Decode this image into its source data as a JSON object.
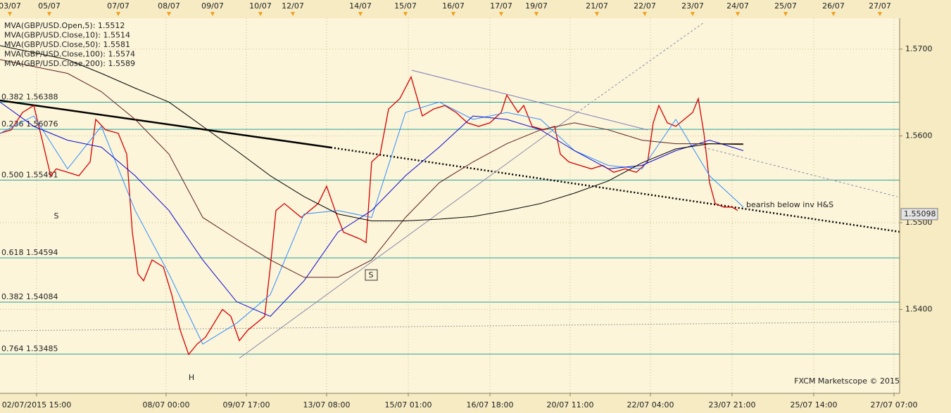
{
  "chart_data": {
    "type": "line",
    "legend": [
      "MVA(GBP/USD.Open,5): 1.5512",
      "MVA(GBP/USD.Close,10): 1.5514",
      "MVA(GBP/USD.Close,50): 1.5581",
      "MVA(GBP/USD.Close,100): 1.5574",
      "MVA(GBP/USD.Close,200): 1.5589"
    ],
    "x": [
      0,
      12,
      24,
      36,
      48,
      60,
      72,
      84,
      96,
      108,
      120,
      132,
      144,
      156,
      168,
      180,
      192,
      204,
      216,
      228,
      240,
      252,
      264
    ],
    "series": [
      {
        "name": "MVA(GBP/USD.Open,5): 1.5512",
        "color": "#d40000",
        "x": [
          0,
          4,
          8,
          12,
          15,
          18,
          20,
          24,
          28,
          32,
          34,
          37.5,
          42,
          45,
          47,
          49,
          51,
          54,
          58,
          61,
          64,
          67,
          70,
          73,
          76,
          79,
          82,
          85,
          88,
          91,
          94,
          96,
          98,
          101,
          104,
          107,
          110,
          113,
          116,
          119,
          122,
          125,
          128,
          130,
          132,
          135,
          138,
          142,
          146,
          150,
          154,
          158,
          162,
          166,
          170,
          174,
          178,
          180,
          184,
          186,
          189,
          193,
          197,
          199,
          202,
          206,
          210,
          214,
          218,
          222,
          226,
          230,
          232,
          234,
          237,
          240,
          243,
          246,
          248,
          250,
          252,
          254,
          257,
          260,
          262
        ],
        "values": [
          1.5603,
          1.5607,
          1.5627,
          1.5635,
          1.5595,
          1.5554,
          1.5562,
          1.5558,
          1.5554,
          1.557,
          1.5619,
          1.5607,
          1.5603,
          1.5579,
          1.5489,
          1.5441,
          1.5433,
          1.5457,
          1.5449,
          1.5417,
          1.5376,
          1.5348,
          1.536,
          1.5368,
          1.5384,
          1.54,
          1.5392,
          1.5364,
          1.5376,
          1.5384,
          1.5392,
          1.5449,
          1.5514,
          1.5522,
          1.5514,
          1.5506,
          1.5514,
          1.5522,
          1.5542,
          1.5514,
          1.5489,
          1.5485,
          1.5481,
          1.5477,
          1.557,
          1.5579,
          1.5631,
          1.5643,
          1.5668,
          1.5623,
          1.5631,
          1.5635,
          1.5627,
          1.5615,
          1.5611,
          1.5615,
          1.5627,
          1.5647,
          1.5627,
          1.5635,
          1.5611,
          1.5607,
          1.5611,
          1.5579,
          1.557,
          1.5566,
          1.5562,
          1.5566,
          1.5558,
          1.5562,
          1.5558,
          1.557,
          1.5615,
          1.5635,
          1.5615,
          1.5611,
          1.5619,
          1.5627,
          1.5643,
          1.5603,
          1.5546,
          1.5522,
          1.5518,
          1.5518,
          1.5514
        ]
      },
      {
        "name": "MVA(GBP/USD.Close,10): 1.5514",
        "color": "#2f8fff",
        "values": [
          1.5603,
          1.5623,
          1.5562,
          1.5611,
          1.5514,
          1.5441,
          1.536,
          1.5384,
          1.5417,
          1.551,
          1.5514,
          1.5506,
          1.5627,
          1.5639,
          1.5619,
          1.5627,
          1.5619,
          1.5583,
          1.5566,
          1.5562,
          1.5619,
          1.5554,
          1.5518
        ]
      },
      {
        "name": "MVA(GBP/USD.Close,50): 1.5581",
        "color": "#0a0ad0",
        "values": [
          1.5639,
          1.5611,
          1.5595,
          1.5587,
          1.5554,
          1.5514,
          1.5457,
          1.5409,
          1.5392,
          1.5433,
          1.5489,
          1.5514,
          1.5554,
          1.5587,
          1.5623,
          1.5619,
          1.5607,
          1.5583,
          1.5562,
          1.5566,
          1.5583,
          1.5595,
          1.5583
        ]
      },
      {
        "name": "MVA(GBP/USD.Close,100): 1.5574",
        "color": "#5a2020",
        "values": [
          1.5688,
          1.568,
          1.5672,
          1.5651,
          1.5619,
          1.5579,
          1.5506,
          1.5481,
          1.5457,
          1.5437,
          1.5437,
          1.5457,
          1.5506,
          1.5546,
          1.557,
          1.5591,
          1.5607,
          1.5615,
          1.5607,
          1.5595,
          1.5591,
          1.5591,
          1.5591
        ]
      },
      {
        "name": "MVA(GBP/USD.Close,200): 1.5589",
        "color": "#000000",
        "values": [
          1.5704,
          1.5696,
          1.5688,
          1.5672,
          1.5655,
          1.5639,
          1.5611,
          1.5583,
          1.5554,
          1.553,
          1.551,
          1.5502,
          1.5502,
          1.5504,
          1.5507,
          1.5514,
          1.5522,
          1.5534,
          1.5548,
          1.5569,
          1.5585,
          1.5591,
          1.559
        ]
      }
    ],
    "fib_levels": [
      {
        "value": 1.56388,
        "label": "0.382 1.56388"
      },
      {
        "value": 1.56076,
        "label": "0.236 1.56076"
      },
      {
        "value": 1.55491,
        "label": "0.500 1.55491"
      },
      {
        "value": 1.54594,
        "label": "0.618 1.54594"
      },
      {
        "value": 1.54084,
        "label": "0.382 1.54084"
      },
      {
        "value": 1.53485,
        "label": "0.764 1.53485"
      }
    ],
    "last_price": {
      "value": 1.55098,
      "label": "1.55098"
    },
    "xlim": [
      0,
      319.5
    ],
    "ylim": [
      1.5303,
      1.5736
    ],
    "yticks": [
      {
        "value": 1.57,
        "label": "1.5700"
      },
      {
        "value": 1.56,
        "label": "1.5600"
      },
      {
        "value": 1.55,
        "label": "1.5500"
      },
      {
        "value": 1.54,
        "label": "1.5400"
      }
    ],
    "xticks": [
      {
        "value": 13,
        "label": "02/07/2015 15:00"
      },
      {
        "value": 59,
        "label": "08/07 00:00"
      },
      {
        "value": 87.5,
        "label": "09/07 17:00"
      },
      {
        "value": 116,
        "label": "13/07 08:00"
      },
      {
        "value": 145,
        "label": "15/07 01:00"
      },
      {
        "value": 174,
        "label": "16/07 18:00"
      },
      {
        "value": 202.5,
        "label": "20/07 11:00"
      },
      {
        "value": 231,
        "label": "22/07 04:00"
      },
      {
        "value": 260,
        "label": "23/07 21:00"
      },
      {
        "value": 289,
        "label": "25/07 14:00"
      },
      {
        "value": 317.5,
        "label": "27/07 07:00"
      }
    ],
    "xticks_top": [
      {
        "value": 3.5,
        "label": "03/07"
      },
      {
        "value": 17.5,
        "label": "05/07"
      },
      {
        "value": 42,
        "label": "07/07"
      },
      {
        "value": 60,
        "label": "08/07"
      },
      {
        "value": 75.5,
        "label": "09/07"
      },
      {
        "value": 92.5,
        "label": "10/07"
      },
      {
        "value": 104,
        "label": "12/07"
      },
      {
        "value": 128,
        "label": "14/07"
      },
      {
        "value": 144,
        "label": "15/07"
      },
      {
        "value": 161,
        "label": "16/07"
      },
      {
        "value": 178,
        "label": "17/07"
      },
      {
        "value": 190.5,
        "label": "19/07"
      },
      {
        "value": 212,
        "label": "21/07"
      },
      {
        "value": 229,
        "label": "22/07"
      },
      {
        "value": 246,
        "label": "23/07"
      },
      {
        "value": 262,
        "label": "24/07"
      },
      {
        "value": 279,
        "label": "25/07"
      },
      {
        "value": 296,
        "label": "26/07"
      },
      {
        "value": 312.5,
        "label": "27/07"
      }
    ],
    "grid": true,
    "annotations": [
      "S",
      "S",
      "H",
      "bearish below inv H&S",
      "FXCM Marketscope © 2015"
    ]
  }
}
